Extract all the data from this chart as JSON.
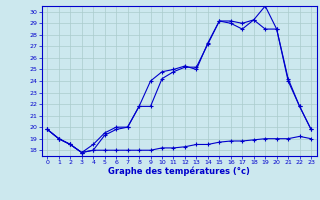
{
  "title": "Graphe des températures (°c)",
  "bg_color": "#cce8ee",
  "grid_color": "#aacccc",
  "line_color": "#0000cc",
  "xlim": [
    -0.5,
    23.5
  ],
  "ylim": [
    17.5,
    30.5
  ],
  "yticks": [
    18,
    19,
    20,
    21,
    22,
    23,
    24,
    25,
    26,
    27,
    28,
    29,
    30
  ],
  "xticks": [
    0,
    1,
    2,
    3,
    4,
    5,
    6,
    7,
    8,
    9,
    10,
    11,
    12,
    13,
    14,
    15,
    16,
    17,
    18,
    19,
    20,
    21,
    22,
    23
  ],
  "line1_x": [
    0,
    1,
    2,
    3,
    4,
    5,
    6,
    7,
    8,
    9,
    10,
    11,
    12,
    13,
    14,
    15,
    16,
    17,
    18,
    19,
    20,
    21,
    22,
    23
  ],
  "line1_y": [
    19.8,
    19.0,
    18.5,
    17.8,
    18.0,
    18.0,
    18.0,
    18.0,
    18.0,
    18.0,
    18.2,
    18.2,
    18.3,
    18.5,
    18.5,
    18.7,
    18.8,
    18.8,
    18.9,
    19.0,
    19.0,
    19.0,
    19.2,
    19.0
  ],
  "line2_x": [
    0,
    1,
    2,
    3,
    4,
    5,
    6,
    7,
    8,
    9,
    10,
    11,
    12,
    13,
    14,
    15,
    16,
    17,
    18,
    19,
    20,
    21,
    22,
    23
  ],
  "line2_y": [
    19.8,
    19.0,
    18.5,
    17.8,
    18.0,
    19.3,
    19.8,
    20.0,
    21.8,
    24.0,
    24.8,
    25.0,
    25.3,
    25.0,
    27.3,
    29.2,
    29.0,
    28.5,
    29.3,
    30.5,
    28.5,
    24.0,
    21.8,
    19.8
  ],
  "line3_x": [
    0,
    1,
    2,
    3,
    4,
    5,
    6,
    7,
    8,
    9,
    10,
    11,
    12,
    13,
    14,
    15,
    16,
    17,
    18,
    19,
    20,
    21,
    22,
    23
  ],
  "line3_y": [
    19.8,
    19.0,
    18.5,
    17.8,
    18.5,
    19.5,
    20.0,
    20.0,
    21.8,
    21.8,
    24.2,
    24.8,
    25.2,
    25.2,
    27.2,
    29.2,
    29.2,
    29.0,
    29.3,
    28.5,
    28.5,
    24.2,
    21.8,
    19.8
  ]
}
